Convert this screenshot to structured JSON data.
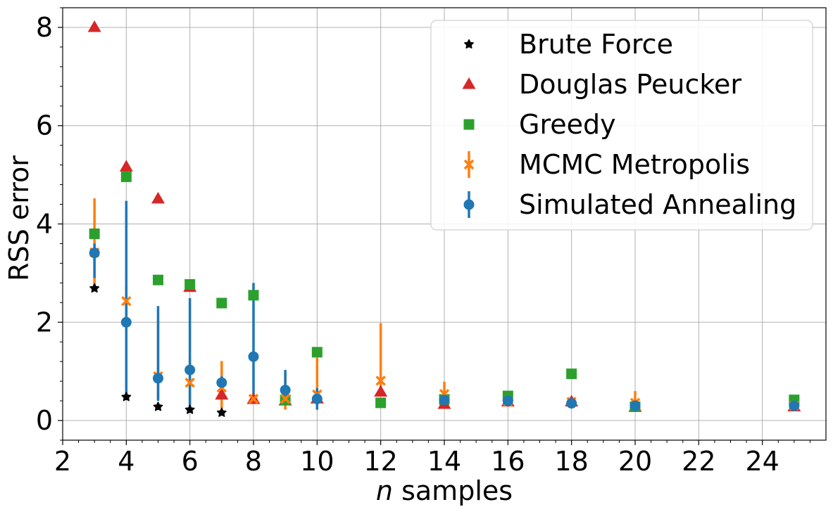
{
  "chart_data": {
    "type": "scatter",
    "xlabel_var": "n",
    "xlabel_rest": " samples",
    "ylabel": "RSS error",
    "xlim": [
      2,
      26
    ],
    "ylim": [
      -0.4,
      8.4
    ],
    "x_ticks": [
      2,
      4,
      6,
      8,
      10,
      12,
      14,
      16,
      18,
      20,
      22,
      24
    ],
    "y_ticks": [
      0,
      2,
      4,
      6,
      8
    ],
    "grid": true,
    "legend_position": "top-right",
    "series": [
      {
        "name": "Brute Force",
        "marker": "star",
        "color": "#000000",
        "points": [
          {
            "x": 3,
            "y": 2.69
          },
          {
            "x": 4,
            "y": 0.48
          },
          {
            "x": 5,
            "y": 0.28
          },
          {
            "x": 6,
            "y": 0.22
          },
          {
            "x": 7,
            "y": 0.16
          }
        ]
      },
      {
        "name": "Douglas Peucker",
        "marker": "triangle",
        "color": "#d62728",
        "points": [
          {
            "x": 3,
            "y": 8.0
          },
          {
            "x": 4,
            "y": 5.16
          },
          {
            "x": 5,
            "y": 4.51
          },
          {
            "x": 6,
            "y": 2.71
          },
          {
            "x": 7,
            "y": 0.52
          },
          {
            "x": 8,
            "y": 0.43
          },
          {
            "x": 9,
            "y": 0.4
          },
          {
            "x": 10,
            "y": 0.44
          },
          {
            "x": 12,
            "y": 0.58
          },
          {
            "x": 14,
            "y": 0.33
          },
          {
            "x": 16,
            "y": 0.38
          },
          {
            "x": 18,
            "y": 0.38
          },
          {
            "x": 20,
            "y": 0.27
          },
          {
            "x": 25,
            "y": 0.28
          }
        ]
      },
      {
        "name": "Greedy",
        "marker": "square",
        "color": "#2ca02c",
        "points": [
          {
            "x": 3,
            "y": 3.8
          },
          {
            "x": 4,
            "y": 4.96
          },
          {
            "x": 5,
            "y": 2.86
          },
          {
            "x": 6,
            "y": 2.77
          },
          {
            "x": 7,
            "y": 2.39
          },
          {
            "x": 8,
            "y": 2.55
          },
          {
            "x": 9,
            "y": 0.42
          },
          {
            "x": 10,
            "y": 1.39
          },
          {
            "x": 12,
            "y": 0.36
          },
          {
            "x": 14,
            "y": 0.43
          },
          {
            "x": 16,
            "y": 0.5
          },
          {
            "x": 18,
            "y": 0.95
          },
          {
            "x": 20,
            "y": 0.28
          },
          {
            "x": 25,
            "y": 0.42
          }
        ]
      },
      {
        "name": "MCMC Metropolis",
        "marker": "x",
        "color": "#ff7f0e",
        "points": [
          {
            "x": 3,
            "y": 3.42,
            "err_low": 2.75,
            "err_high": 4.52
          },
          {
            "x": 4,
            "y": 2.43,
            "err_low": 2.05,
            "err_high": 2.75
          },
          {
            "x": 5,
            "y": 0.9,
            "err_low": 0.45,
            "err_high": 2.02
          },
          {
            "x": 6,
            "y": 0.77,
            "err_low": 0.35,
            "err_high": 1.26
          },
          {
            "x": 7,
            "y": 0.67,
            "err_low": 0.25,
            "err_high": 1.21
          },
          {
            "x": 8,
            "y": 0.44,
            "err_low": 0.38,
            "err_high": 0.52
          },
          {
            "x": 9,
            "y": 0.44,
            "err_low": 0.22,
            "err_high": 0.98
          },
          {
            "x": 10,
            "y": 0.53,
            "err_low": 0.31,
            "err_high": 1.28
          },
          {
            "x": 12,
            "y": 0.81,
            "err_low": 0.52,
            "err_high": 1.98
          },
          {
            "x": 14,
            "y": 0.54,
            "err_low": 0.32,
            "err_high": 0.79
          },
          {
            "x": 16,
            "y": 0.38,
            "err_low": 0.28,
            "err_high": 0.48
          },
          {
            "x": 18,
            "y": 0.38,
            "err_low": 0.3,
            "err_high": 0.46
          },
          {
            "x": 20,
            "y": 0.36,
            "err_low": 0.22,
            "err_high": 0.6
          },
          {
            "x": 25,
            "y": 0.3,
            "err_low": 0.27,
            "err_high": 0.34
          }
        ]
      },
      {
        "name": "Simulated Annealing",
        "marker": "circle",
        "color": "#1f77b4",
        "points": [
          {
            "x": 3,
            "y": 3.41,
            "err_low": 2.9,
            "err_high": 3.6
          },
          {
            "x": 4,
            "y": 2.0,
            "err_low": 0.5,
            "err_high": 4.47
          },
          {
            "x": 5,
            "y": 0.86,
            "err_low": 0.4,
            "err_high": 2.33
          },
          {
            "x": 6,
            "y": 1.03,
            "err_low": 0.3,
            "err_high": 2.49
          },
          {
            "x": 7,
            "y": 0.77,
            "err_low": 0.55,
            "err_high": 0.9
          },
          {
            "x": 8,
            "y": 1.3,
            "err_low": 0.45,
            "err_high": 2.8
          },
          {
            "x": 9,
            "y": 0.62,
            "err_low": 0.32,
            "err_high": 1.03
          },
          {
            "x": 10,
            "y": 0.44,
            "err_low": 0.22,
            "err_high": 0.66
          },
          {
            "x": 14,
            "y": 0.42,
            "err_low": 0.35,
            "err_high": 0.5
          },
          {
            "x": 16,
            "y": 0.4,
            "err_low": 0.34,
            "err_high": 0.46
          },
          {
            "x": 18,
            "y": 0.35,
            "err_low": 0.3,
            "err_high": 0.4
          },
          {
            "x": 20,
            "y": 0.3,
            "err_low": 0.27,
            "err_high": 0.34
          },
          {
            "x": 25,
            "y": 0.3,
            "err_low": 0.27,
            "err_high": 0.33
          }
        ]
      }
    ],
    "legend": [
      {
        "label": "Brute Force",
        "marker": "star",
        "color": "#000000",
        "errorbar": false
      },
      {
        "label": "Douglas Peucker",
        "marker": "triangle",
        "color": "#d62728",
        "errorbar": false
      },
      {
        "label": "Greedy",
        "marker": "square",
        "color": "#2ca02c",
        "errorbar": false
      },
      {
        "label": "MCMC Metropolis",
        "marker": "x",
        "color": "#ff7f0e",
        "errorbar": true
      },
      {
        "label": "Simulated Annealing",
        "marker": "circle",
        "color": "#1f77b4",
        "errorbar": true
      }
    ]
  }
}
